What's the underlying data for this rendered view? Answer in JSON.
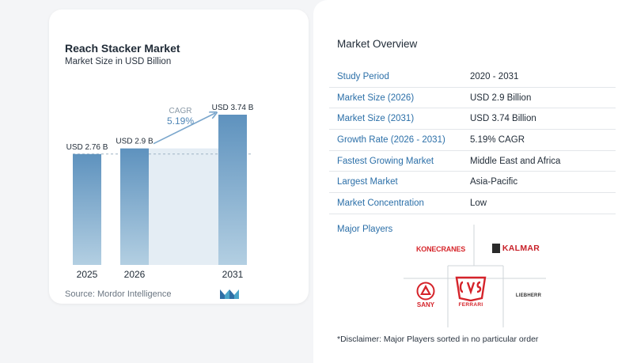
{
  "chart_data": {
    "type": "bar",
    "title": "Reach Stacker Market",
    "subtitle": "Market Size in USD Billion",
    "categories": [
      "2025",
      "2026",
      "2031"
    ],
    "values": [
      2.76,
      2.9,
      3.74
    ],
    "value_labels": [
      "USD 2.76 B",
      "USD 2.9 B",
      "USD 3.74 B"
    ],
    "ylim": [
      0,
      3.74
    ],
    "cagr_label": "CAGR",
    "cagr_value": "5.19%",
    "colors": {
      "bar": "#5e92be",
      "bar_light": "#b3cfe2",
      "gap_fill": "#e4edf4",
      "arrow": "#7aa6cc"
    },
    "source": "Source:  Mordor Intelligence"
  },
  "overview": {
    "title": "Market Overview",
    "rows": [
      {
        "key": "Study Period",
        "value": "2020 - 2031"
      },
      {
        "key": "Market Size (2026)",
        "value": "USD 2.9 Billion"
      },
      {
        "key": "Market Size (2031)",
        "value": "USD 3.74 Billion"
      },
      {
        "key": "Growth Rate (2026 - 2031)",
        "value": "5.19% CAGR"
      },
      {
        "key": "Fastest Growing Market",
        "value": "Middle East and Africa"
      },
      {
        "key": "Largest Market",
        "value": "Asia-Pacific"
      },
      {
        "key": "Market Concentration",
        "value": "Low"
      }
    ]
  },
  "players": {
    "label": "Major Players",
    "logos": [
      "KONECRANES",
      "KALMAR",
      "SANY",
      "FERRARI",
      "LIEBHERR"
    ]
  },
  "disclaimer": "*Disclaimer: Major Players sorted in no particular order"
}
